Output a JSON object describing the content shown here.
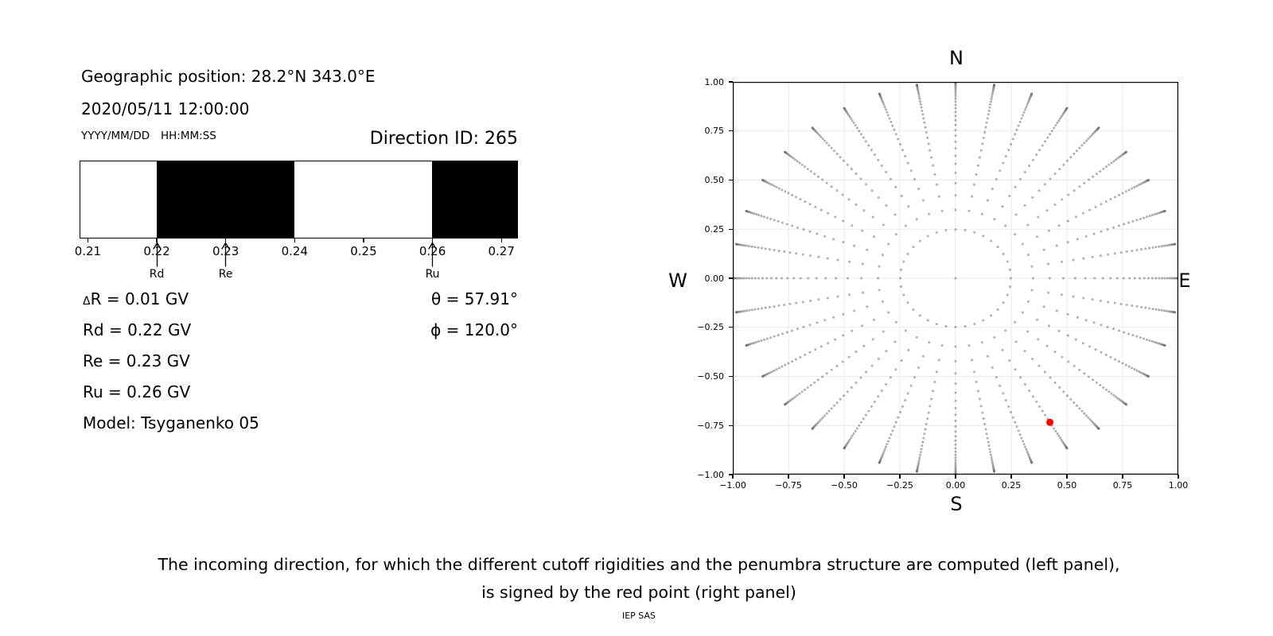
{
  "header": {
    "geo_position": "Geographic position: 28.2°N 343.0°E",
    "datetime": "2020/05/11  12:00:00",
    "date_format_hint": "YYYY/MM/DD",
    "time_format_hint": "HH:MM:SS",
    "direction_id": "Direction ID: 265"
  },
  "values": {
    "delta_sym": "Δ",
    "delta_rest": "R = 0.01 GV",
    "rd": "Rd = 0.22 GV",
    "re": "Re = 0.23 GV",
    "ru": "Ru = 0.26 GV",
    "model": "Model: Tsyganenko 05",
    "theta": "θ = 57.91°",
    "phi": "ϕ = 120.0°"
  },
  "caption": {
    "line1": "The incoming direction, for which the different cutoff rigidities and the penumbra structure are computed (left panel),",
    "line2": "is signed by the red point (right panel)",
    "credit": "IEP SAS"
  },
  "chart_data": [
    {
      "type": "bar",
      "name": "penumbra-structure",
      "title": "",
      "xlabel": "",
      "description": "Cutoff rigidity penumbra: black bands are forbidden rigidity intervals (GV), white bands are allowed. Arrows mark Rd (lower cutoff), Re (effective cutoff), Ru (upper cutoff).",
      "xlim": [
        0.2088,
        0.2724
      ],
      "xticks": [
        0.21,
        0.22,
        0.23,
        0.24,
        0.25,
        0.26,
        0.27
      ],
      "xtick_labels": [
        "0.21",
        "0.22",
        "0.23",
        "0.24",
        "0.25",
        "0.26",
        "0.27"
      ],
      "forbidden_bands": [
        [
          0.22,
          0.24
        ],
        [
          0.26,
          0.2724
        ]
      ],
      "allowed_bands": [
        [
          0.2088,
          0.22
        ],
        [
          0.24,
          0.26
        ]
      ],
      "band_color": "#000000",
      "background_color": "#ffffff",
      "axis_color": "#000000",
      "markers": [
        {
          "label": "Rd",
          "value": 0.22
        },
        {
          "label": "Re",
          "value": 0.23
        },
        {
          "label": "Ru",
          "value": 0.26
        }
      ]
    },
    {
      "type": "scatter",
      "name": "incoming-directions",
      "title": "",
      "description": "Grid of computed incoming directions projected on the horizontal plane (r = sin(zenith), azimuth every 10°). The selected direction (ID 265, zenith 57.91°, azimuth 120.0°) is marked by the red point.",
      "xlim": [
        -1,
        1
      ],
      "ylim": [
        -1,
        1
      ],
      "xticks": [
        -1,
        -0.75,
        -0.5,
        -0.25,
        0,
        0.25,
        0.5,
        0.75,
        1
      ],
      "xtick_labels": [
        "−1.00",
        "−0.75",
        "−0.50",
        "−0.25",
        "0.00",
        "0.25",
        "0.50",
        "0.75",
        "1.00"
      ],
      "yticks": [
        1,
        0.75,
        0.5,
        0.25,
        0,
        -0.25,
        -0.5,
        -0.75,
        -1
      ],
      "ytick_labels": [
        "1.00",
        "0.75",
        "0.50",
        "0.25",
        "0.00",
        "−0.25",
        "−0.50",
        "−0.75",
        "−1.00"
      ],
      "grid": {
        "interval": 0.25,
        "color": "#e9e9e9",
        "on": true
      },
      "legend": "none",
      "compass": {
        "north": "N",
        "south": "S",
        "east": "E",
        "west": "W"
      },
      "point_grid": {
        "azimuth_start_deg": 0,
        "azimuth_step_deg": 10,
        "azimuth_count": 36,
        "cos_zenith_divisions": 32,
        "radii_rule": "r = sin(zenith) with cos(zenith) = k/32 for k = 0..31 on every azimuth spoke, plus one center point at zenith 0",
        "marker_color": "#6e6e6e",
        "marker_opacity": 0.55,
        "marker_radius_px": 1.5
      },
      "highlight_point": {
        "x": 0.4236,
        "y": -0.7338,
        "zenith_deg": 57.91,
        "azimuth_deg": 120.0,
        "color": "#ff0000",
        "radius_px": 4.5
      }
    }
  ]
}
